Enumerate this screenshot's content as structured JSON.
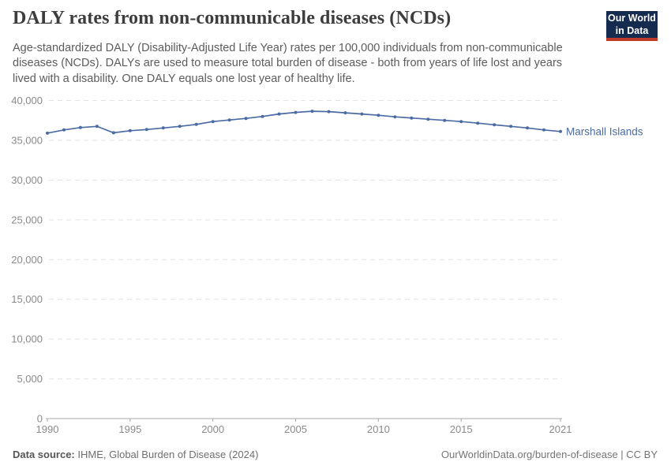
{
  "header": {
    "title": "DALY rates from non-communicable diseases (NCDs)",
    "subtitle": "Age-standardized DALY (Disability-Adjusted Life Year) rates per 100,000 individuals from non-communicable diseases (NCDs). DALYs are used to measure total burden of disease - both from years of life lost and years lived with a disability. One DALY equals one lost year of healthy life.",
    "logo_line1": "Our World",
    "logo_line2": "in Data",
    "logo_bg_color": "#152b4f",
    "logo_accent_color": "#c0392b"
  },
  "chart_data": {
    "type": "line",
    "title": "DALY rates from non-communicable diseases (NCDs)",
    "xlabel": "",
    "ylabel": "",
    "xlim": [
      1990,
      2021
    ],
    "ylim": [
      0,
      40000
    ],
    "grid": "horizontal-dashed",
    "legend_position": "end-of-line-label",
    "x": [
      1990,
      1991,
      1992,
      1993,
      1994,
      1995,
      1996,
      1997,
      1998,
      1999,
      2000,
      2001,
      2002,
      2003,
      2004,
      2005,
      2006,
      2007,
      2008,
      2009,
      2010,
      2011,
      2012,
      2013,
      2014,
      2015,
      2016,
      2017,
      2018,
      2019,
      2020,
      2021
    ],
    "series": [
      {
        "name": "Marshall Islands",
        "color": "#4a6ba3",
        "values": [
          35900,
          36300,
          36600,
          36750,
          35950,
          36200,
          36350,
          36550,
          36750,
          37000,
          37350,
          37550,
          37750,
          38000,
          38300,
          38500,
          38650,
          38600,
          38450,
          38300,
          38150,
          37950,
          37800,
          37650,
          37500,
          37350,
          37150,
          36950,
          36750,
          36550,
          36300,
          36100
        ]
      }
    ],
    "xticks": {
      "values": [
        1990,
        1995,
        2000,
        2005,
        2010,
        2015,
        2021
      ],
      "labels": [
        "1990",
        "1995",
        "2000",
        "2005",
        "2010",
        "2015",
        "2021"
      ]
    },
    "yticks": {
      "values": [
        0,
        5000,
        10000,
        15000,
        20000,
        25000,
        30000,
        35000,
        40000
      ],
      "labels": [
        "0",
        "5,000",
        "10,000",
        "15,000",
        "20,000",
        "25,000",
        "30,000",
        "35,000",
        "40,000"
      ]
    },
    "grid_color": "#e2e2e2",
    "axis_color": "#a8a8a8",
    "tick_label_color": "#8a8a8a"
  },
  "footer": {
    "data_source_label": "Data source:",
    "data_source_value": "IHME, Global Burden of Disease (2024)",
    "link": "OurWorldinData.org/burden-of-disease | CC BY"
  }
}
